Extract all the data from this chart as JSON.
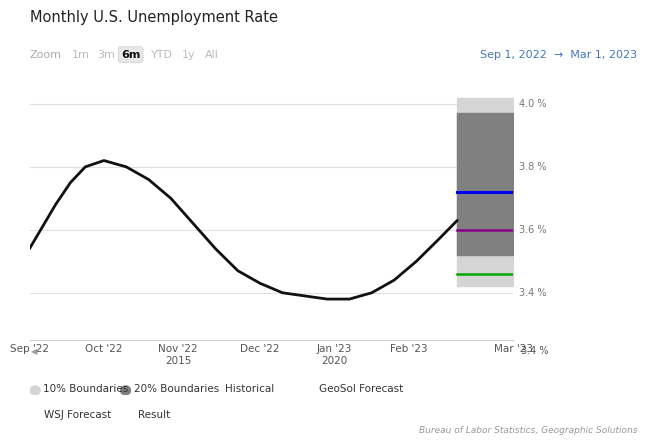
{
  "title": "Monthly U.S. Unemployment Rate",
  "bg_color": "#ffffff",
  "plot_bg_color": "#ffffff",
  "historical_x": [
    0.0,
    0.15,
    0.35,
    0.55,
    0.75,
    1.0,
    1.3,
    1.6,
    1.9,
    2.2,
    2.5,
    2.8,
    3.1,
    3.4,
    3.7,
    4.0,
    4.3,
    4.6,
    4.9,
    5.2,
    5.5,
    5.75
  ],
  "historical_y": [
    3.54,
    3.6,
    3.68,
    3.75,
    3.8,
    3.82,
    3.8,
    3.76,
    3.7,
    3.62,
    3.54,
    3.47,
    3.43,
    3.4,
    3.39,
    3.38,
    3.38,
    3.4,
    3.44,
    3.5,
    3.57,
    3.63
  ],
  "forecast_x_start": 5.75,
  "x_max": 6.5,
  "geosol_forecast_y": 3.72,
  "wsj_forecast_y": 3.6,
  "result_y": 3.46,
  "band_10pct_low": 3.42,
  "band_10pct_high": 4.02,
  "band_20pct_low": 3.52,
  "band_20pct_high": 3.97,
  "ylim_low": 3.25,
  "ylim_high": 4.1,
  "ytick_values": [
    3.4,
    3.6,
    3.8,
    4.0
  ],
  "ytick_labels": [
    "3.4 %",
    "3.6 %",
    "3.8 %",
    "4.0 %"
  ],
  "xtick_positions": [
    0.0,
    1.0,
    2.0,
    3.1,
    4.1,
    5.1,
    5.75,
    6.5
  ],
  "xtick_labels": [
    "Sep '22",
    "Oct '22",
    "Nov '22\n2015",
    "Dec '22",
    "Jan '23\n2020",
    "Feb '23",
    "",
    "Mar '23"
  ],
  "color_historical": "#111111",
  "color_geosol": "#0000ee",
  "color_wsj": "#880088",
  "color_result": "#00aa00",
  "color_band_10": "#d5d5d5",
  "color_band_20": "#808080",
  "color_grid": "#e0e0e0",
  "footer": "Bureau of Labor Statistics, Geographic Solutions",
  "zoom_labels": [
    "1m",
    "3m",
    "6m",
    "YTD",
    "1y",
    "All"
  ],
  "zoom_active": "6m",
  "date_range_left": "Sep 1, 2022",
  "date_range_right": "Mar 1, 2023",
  "date_range_color": "#4477bb"
}
